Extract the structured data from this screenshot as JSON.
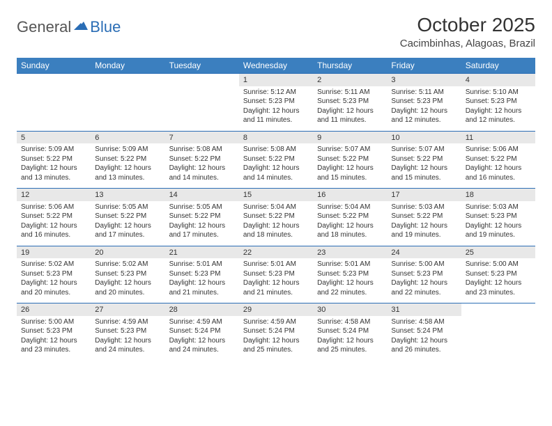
{
  "logo": {
    "text_general": "General",
    "text_blue": "Blue"
  },
  "title": "October 2025",
  "location": "Cacimbinhas, Alagoas, Brazil",
  "colors": {
    "header_bg": "#3b7fbf",
    "header_text": "#ffffff",
    "date_bg": "#e8e8e8",
    "border": "#2a6db5",
    "page_bg": "#ffffff",
    "body_text": "#333333",
    "logo_gray": "#555555",
    "logo_blue": "#2a6db5"
  },
  "typography": {
    "title_fontsize": 28,
    "location_fontsize": 15,
    "day_header_fontsize": 12,
    "date_fontsize": 11,
    "info_fontsize": 10
  },
  "day_headers": [
    "Sunday",
    "Monday",
    "Tuesday",
    "Wednesday",
    "Thursday",
    "Friday",
    "Saturday"
  ],
  "weeks": [
    [
      {
        "date": "",
        "sunrise": "",
        "sunset": "",
        "daylight": ""
      },
      {
        "date": "",
        "sunrise": "",
        "sunset": "",
        "daylight": ""
      },
      {
        "date": "",
        "sunrise": "",
        "sunset": "",
        "daylight": ""
      },
      {
        "date": "1",
        "sunrise": "Sunrise: 5:12 AM",
        "sunset": "Sunset: 5:23 PM",
        "daylight": "Daylight: 12 hours and 11 minutes."
      },
      {
        "date": "2",
        "sunrise": "Sunrise: 5:11 AM",
        "sunset": "Sunset: 5:23 PM",
        "daylight": "Daylight: 12 hours and 11 minutes."
      },
      {
        "date": "3",
        "sunrise": "Sunrise: 5:11 AM",
        "sunset": "Sunset: 5:23 PM",
        "daylight": "Daylight: 12 hours and 12 minutes."
      },
      {
        "date": "4",
        "sunrise": "Sunrise: 5:10 AM",
        "sunset": "Sunset: 5:23 PM",
        "daylight": "Daylight: 12 hours and 12 minutes."
      }
    ],
    [
      {
        "date": "5",
        "sunrise": "Sunrise: 5:09 AM",
        "sunset": "Sunset: 5:22 PM",
        "daylight": "Daylight: 12 hours and 13 minutes."
      },
      {
        "date": "6",
        "sunrise": "Sunrise: 5:09 AM",
        "sunset": "Sunset: 5:22 PM",
        "daylight": "Daylight: 12 hours and 13 minutes."
      },
      {
        "date": "7",
        "sunrise": "Sunrise: 5:08 AM",
        "sunset": "Sunset: 5:22 PM",
        "daylight": "Daylight: 12 hours and 14 minutes."
      },
      {
        "date": "8",
        "sunrise": "Sunrise: 5:08 AM",
        "sunset": "Sunset: 5:22 PM",
        "daylight": "Daylight: 12 hours and 14 minutes."
      },
      {
        "date": "9",
        "sunrise": "Sunrise: 5:07 AM",
        "sunset": "Sunset: 5:22 PM",
        "daylight": "Daylight: 12 hours and 15 minutes."
      },
      {
        "date": "10",
        "sunrise": "Sunrise: 5:07 AM",
        "sunset": "Sunset: 5:22 PM",
        "daylight": "Daylight: 12 hours and 15 minutes."
      },
      {
        "date": "11",
        "sunrise": "Sunrise: 5:06 AM",
        "sunset": "Sunset: 5:22 PM",
        "daylight": "Daylight: 12 hours and 16 minutes."
      }
    ],
    [
      {
        "date": "12",
        "sunrise": "Sunrise: 5:06 AM",
        "sunset": "Sunset: 5:22 PM",
        "daylight": "Daylight: 12 hours and 16 minutes."
      },
      {
        "date": "13",
        "sunrise": "Sunrise: 5:05 AM",
        "sunset": "Sunset: 5:22 PM",
        "daylight": "Daylight: 12 hours and 17 minutes."
      },
      {
        "date": "14",
        "sunrise": "Sunrise: 5:05 AM",
        "sunset": "Sunset: 5:22 PM",
        "daylight": "Daylight: 12 hours and 17 minutes."
      },
      {
        "date": "15",
        "sunrise": "Sunrise: 5:04 AM",
        "sunset": "Sunset: 5:22 PM",
        "daylight": "Daylight: 12 hours and 18 minutes."
      },
      {
        "date": "16",
        "sunrise": "Sunrise: 5:04 AM",
        "sunset": "Sunset: 5:22 PM",
        "daylight": "Daylight: 12 hours and 18 minutes."
      },
      {
        "date": "17",
        "sunrise": "Sunrise: 5:03 AM",
        "sunset": "Sunset: 5:22 PM",
        "daylight": "Daylight: 12 hours and 19 minutes."
      },
      {
        "date": "18",
        "sunrise": "Sunrise: 5:03 AM",
        "sunset": "Sunset: 5:23 PM",
        "daylight": "Daylight: 12 hours and 19 minutes."
      }
    ],
    [
      {
        "date": "19",
        "sunrise": "Sunrise: 5:02 AM",
        "sunset": "Sunset: 5:23 PM",
        "daylight": "Daylight: 12 hours and 20 minutes."
      },
      {
        "date": "20",
        "sunrise": "Sunrise: 5:02 AM",
        "sunset": "Sunset: 5:23 PM",
        "daylight": "Daylight: 12 hours and 20 minutes."
      },
      {
        "date": "21",
        "sunrise": "Sunrise: 5:01 AM",
        "sunset": "Sunset: 5:23 PM",
        "daylight": "Daylight: 12 hours and 21 minutes."
      },
      {
        "date": "22",
        "sunrise": "Sunrise: 5:01 AM",
        "sunset": "Sunset: 5:23 PM",
        "daylight": "Daylight: 12 hours and 21 minutes."
      },
      {
        "date": "23",
        "sunrise": "Sunrise: 5:01 AM",
        "sunset": "Sunset: 5:23 PM",
        "daylight": "Daylight: 12 hours and 22 minutes."
      },
      {
        "date": "24",
        "sunrise": "Sunrise: 5:00 AM",
        "sunset": "Sunset: 5:23 PM",
        "daylight": "Daylight: 12 hours and 22 minutes."
      },
      {
        "date": "25",
        "sunrise": "Sunrise: 5:00 AM",
        "sunset": "Sunset: 5:23 PM",
        "daylight": "Daylight: 12 hours and 23 minutes."
      }
    ],
    [
      {
        "date": "26",
        "sunrise": "Sunrise: 5:00 AM",
        "sunset": "Sunset: 5:23 PM",
        "daylight": "Daylight: 12 hours and 23 minutes."
      },
      {
        "date": "27",
        "sunrise": "Sunrise: 4:59 AM",
        "sunset": "Sunset: 5:23 PM",
        "daylight": "Daylight: 12 hours and 24 minutes."
      },
      {
        "date": "28",
        "sunrise": "Sunrise: 4:59 AM",
        "sunset": "Sunset: 5:24 PM",
        "daylight": "Daylight: 12 hours and 24 minutes."
      },
      {
        "date": "29",
        "sunrise": "Sunrise: 4:59 AM",
        "sunset": "Sunset: 5:24 PM",
        "daylight": "Daylight: 12 hours and 25 minutes."
      },
      {
        "date": "30",
        "sunrise": "Sunrise: 4:58 AM",
        "sunset": "Sunset: 5:24 PM",
        "daylight": "Daylight: 12 hours and 25 minutes."
      },
      {
        "date": "31",
        "sunrise": "Sunrise: 4:58 AM",
        "sunset": "Sunset: 5:24 PM",
        "daylight": "Daylight: 12 hours and 26 minutes."
      },
      {
        "date": "",
        "sunrise": "",
        "sunset": "",
        "daylight": ""
      }
    ]
  ]
}
